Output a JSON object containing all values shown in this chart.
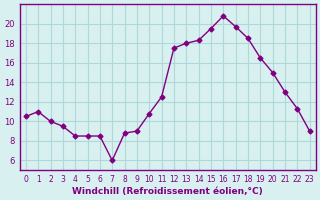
{
  "x": [
    0,
    1,
    2,
    3,
    4,
    5,
    6,
    7,
    8,
    9,
    10,
    11,
    12,
    13,
    14,
    15,
    16,
    17,
    18,
    19,
    20,
    21,
    22,
    23
  ],
  "y": [
    10.5,
    11.0,
    10.0,
    9.5,
    8.5,
    8.5,
    8.5,
    6.0,
    8.8,
    9.0,
    10.8,
    12.5,
    17.5,
    18.0,
    18.3,
    19.5,
    20.8,
    19.7,
    18.5,
    16.5,
    15.0,
    13.0,
    11.3,
    9.0
  ],
  "line_color": "#800080",
  "marker": "D",
  "marker_size": 2.5,
  "bg_color": "#d8f0f0",
  "grid_color": "#b0d8d8",
  "xlabel": "Windchill (Refroidissement éolien,°C)",
  "xlabel_color": "#800080",
  "tick_color": "#800080",
  "ylim": [
    5,
    22
  ],
  "yticks": [
    6,
    8,
    10,
    12,
    14,
    16,
    18,
    20
  ],
  "xticks": [
    0,
    1,
    2,
    3,
    4,
    5,
    6,
    7,
    8,
    9,
    10,
    11,
    12,
    13,
    14,
    15,
    16,
    17,
    18,
    19,
    20,
    21,
    22,
    23
  ],
  "spine_color": "#800080"
}
